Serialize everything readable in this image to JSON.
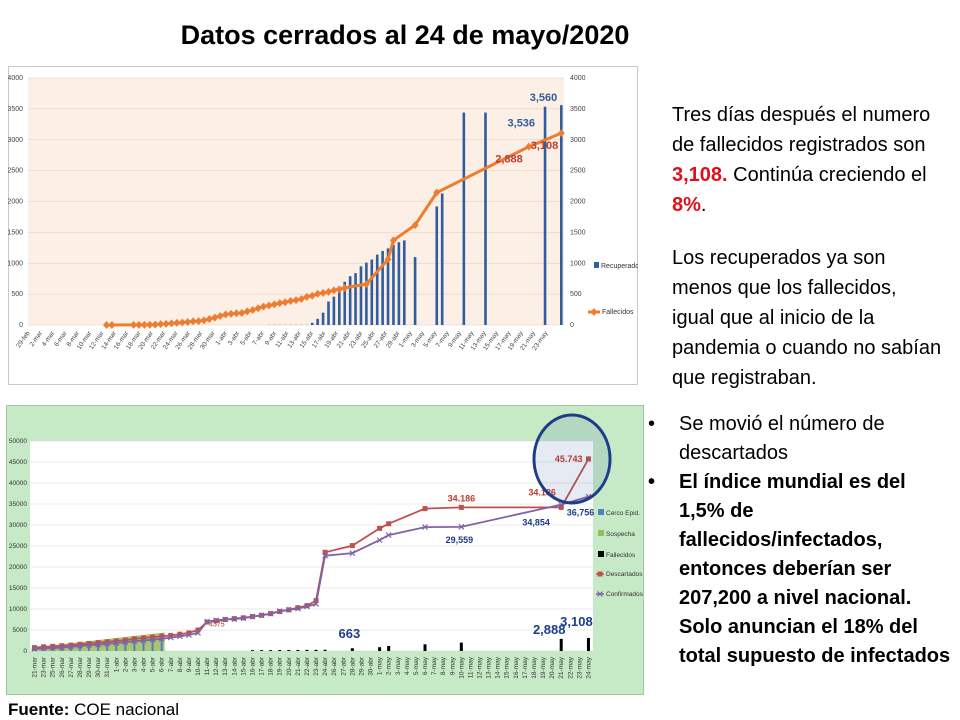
{
  "title": "Datos cerrados al 24 de mayo/2020",
  "para1": {
    "text_before": "Tres días después el numero de fallecidos registrados son ",
    "value": "3,108.",
    "text_middle": " Continúa creciendo el ",
    "pct": "8%",
    "text_end": "."
  },
  "para2": "Los recuperados ya son menos que los fallecidos, igual que al inicio de la pandemia o cuando no sabían que registraban.",
  "bullets": [
    "Se movió  el número de descartados",
    "El índice mundial es del 1,5% de fallecidos/infectados, entonces deberían ser 207,200 a nivel nacional. Solo anuncian el 18% del total supuesto de infectados"
  ],
  "source": {
    "label": "Fuente:",
    "text": " COE nacional"
  },
  "colors": {
    "recuperados": "#2f5d9e",
    "fallecidos": "#ed7d31",
    "descartados": "#c0504d",
    "confirmados": "#8064a2",
    "sospecha": "#9bbb59",
    "highlight": "#1f3c88"
  },
  "chart_data": [
    {
      "type": "bar+line",
      "ylim": [
        0,
        4000
      ],
      "yticks": [
        "0",
        "500",
        "1000",
        "1500",
        "2000",
        "2500",
        "3000",
        "3500",
        "4000"
      ],
      "categories": [
        "29-feb",
        "2-mar",
        "4-mar",
        "6-mar",
        "8-mar",
        "10-mar",
        "12-mar",
        "14-mar",
        "16-mar",
        "18-mar",
        "20-mar",
        "22-mar",
        "24-mar",
        "26-mar",
        "28-mar",
        "30-mar",
        "1-abr",
        "3-abr",
        "5-abr",
        "7-abr",
        "9-abr",
        "11-abr",
        "13-abr",
        "15-abr",
        "17-abr",
        "19-abr",
        "21-abr",
        "23-abr",
        "25-abr",
        "27-abr",
        "29-abr",
        "1-may",
        "3-may",
        "5-may",
        "7-may",
        "9-may",
        "11-may",
        "13-may",
        "15-may",
        "17-may",
        "19-may",
        "21-may",
        "23-may"
      ],
      "legend": [
        "Recuperados",
        "Fallecidos"
      ],
      "legend_position": "right",
      "recuperados": [
        [
          44,
          3
        ],
        [
          45,
          3
        ],
        [
          46,
          3
        ],
        [
          47,
          3
        ],
        [
          48,
          3
        ],
        [
          49,
          3
        ],
        [
          50,
          3
        ],
        [
          51,
          3
        ],
        [
          52,
          35
        ],
        [
          53,
          100
        ],
        [
          54,
          200
        ],
        [
          55,
          380
        ],
        [
          56,
          460
        ],
        [
          57,
          560
        ],
        [
          58,
          700
        ],
        [
          59,
          790
        ],
        [
          60,
          840
        ],
        [
          61,
          950
        ],
        [
          62,
          1010
        ],
        [
          63,
          1060
        ],
        [
          64,
          1140
        ],
        [
          65,
          1200
        ],
        [
          66,
          1240
        ],
        [
          67,
          1300
        ],
        [
          68,
          1340
        ],
        [
          69,
          1370
        ],
        [
          71,
          1100
        ],
        [
          75,
          1920
        ],
        [
          76,
          2130
        ],
        [
          80,
          3440
        ],
        [
          84,
          3440
        ],
        [
          95,
          3536
        ],
        [
          98,
          3560
        ]
      ],
      "fallecidos": [
        [
          14,
          0
        ],
        [
          15,
          0
        ],
        [
          19,
          2
        ],
        [
          20,
          2
        ],
        [
          21,
          2
        ],
        [
          22,
          5
        ],
        [
          23,
          7
        ],
        [
          24,
          14
        ],
        [
          25,
          18
        ],
        [
          26,
          27
        ],
        [
          27,
          34
        ],
        [
          28,
          41
        ],
        [
          29,
          48
        ],
        [
          30,
          58
        ],
        [
          31,
          62
        ],
        [
          32,
          75
        ],
        [
          33,
          98
        ],
        [
          34,
          120
        ],
        [
          35,
          145
        ],
        [
          36,
          172
        ],
        [
          37,
          180
        ],
        [
          38,
          191
        ],
        [
          39,
          194
        ],
        [
          40,
          220
        ],
        [
          41,
          242
        ],
        [
          42,
          272
        ],
        [
          43,
          297
        ],
        [
          44,
          315
        ],
        [
          45,
          333
        ],
        [
          46,
          355
        ],
        [
          47,
          369
        ],
        [
          48,
          388
        ],
        [
          49,
          403
        ],
        [
          50,
          421
        ],
        [
          51,
          456
        ],
        [
          52,
          474
        ],
        [
          53,
          507
        ],
        [
          54,
          520
        ],
        [
          55,
          537
        ],
        [
          56,
          560
        ],
        [
          57,
          576
        ],
        [
          58,
          601
        ],
        [
          62,
          662
        ],
        [
          66,
          1063
        ],
        [
          67,
          1371
        ],
        [
          71,
          1618
        ],
        [
          75,
          2145
        ],
        [
          92,
          2888
        ],
        [
          98,
          3108
        ]
      ],
      "labels": {
        "recuperados_a": "3,536",
        "recuperados_b": "3,560",
        "fallecidos_a": "2,888",
        "fallecidos_b": "3,108"
      }
    },
    {
      "type": "bar+line",
      "ylim": [
        0,
        50000
      ],
      "yticks": [
        "0",
        "5000",
        "10000",
        "15000",
        "20000",
        "25000",
        "30000",
        "35000",
        "40000",
        "45000",
        "50000"
      ],
      "categories": [
        "21-mar",
        "23-mar",
        "25-mar",
        "26-mar",
        "27-mar",
        "28-mar",
        "29-mar",
        "30-mar",
        "31-mar",
        "1-abr",
        "2-abr",
        "3-abr",
        "4-abr",
        "5-abr",
        "6-abr",
        "7-abr",
        "8-abr",
        "9-abr",
        "10-abr",
        "11-abr",
        "12-abr",
        "13-abr",
        "14-abr",
        "15-abr",
        "16-abr",
        "17-abr",
        "18-abr",
        "19-abr",
        "20-abr",
        "21-abr",
        "22-abr",
        "23-abr",
        "24-abr",
        "26-abr",
        "27-abr",
        "28-abr",
        "29-abr",
        "30-abr",
        "1-may",
        "2-may",
        "3-may",
        "4-may",
        "5-may",
        "6-may",
        "7-may",
        "8-may",
        "9-may",
        "10-may",
        "11-may",
        "12-may",
        "13-may",
        "14-may",
        "15-may",
        "16-may",
        "17-may",
        "18-may",
        "19-may",
        "20-may",
        "21-may",
        "22-may",
        "23-may",
        "24-may"
      ],
      "legend": [
        "Cerco Epid.",
        "Sospecha",
        "Fallecidos",
        "Descartados",
        "Confirmados"
      ],
      "legend_position": "right",
      "descartados": [
        [
          0,
          800
        ],
        [
          1,
          1000
        ],
        [
          2,
          1100
        ],
        [
          3,
          1250
        ],
        [
          4,
          1400
        ],
        [
          5,
          1600
        ],
        [
          6,
          1800
        ],
        [
          7,
          2000
        ],
        [
          8,
          2200
        ],
        [
          9,
          2400
        ],
        [
          10,
          2600
        ],
        [
          11,
          2900
        ],
        [
          12,
          3100
        ],
        [
          13,
          3300
        ],
        [
          14,
          3500
        ],
        [
          15,
          3700
        ],
        [
          16,
          4000
        ],
        [
          17,
          4300
        ],
        [
          18,
          5000
        ],
        [
          19,
          6900
        ],
        [
          20,
          7200
        ],
        [
          21,
          7500
        ],
        [
          22,
          7700
        ],
        [
          23,
          7900
        ],
        [
          24,
          8200
        ],
        [
          25,
          8500
        ],
        [
          26,
          8900
        ],
        [
          27,
          9400
        ],
        [
          28,
          9800
        ],
        [
          29,
          10300
        ],
        [
          30,
          10800
        ],
        [
          31,
          12000
        ],
        [
          32,
          23500
        ],
        [
          35,
          25100
        ],
        [
          38,
          29200
        ],
        [
          39,
          30300
        ],
        [
          43,
          33900
        ],
        [
          47,
          34186
        ],
        [
          58,
          34186
        ],
        [
          61,
          45743
        ]
      ],
      "confirmados": [
        [
          0,
          500
        ],
        [
          1,
          600
        ],
        [
          2,
          700
        ],
        [
          3,
          800
        ],
        [
          4,
          1000
        ],
        [
          5,
          1200
        ],
        [
          6,
          1400
        ],
        [
          7,
          1500
        ],
        [
          8,
          1700
        ],
        [
          9,
          1900
        ],
        [
          10,
          2100
        ],
        [
          11,
          2300
        ],
        [
          12,
          2500
        ],
        [
          13,
          2700
        ],
        [
          14,
          2900
        ],
        [
          15,
          3200
        ],
        [
          16,
          3500
        ],
        [
          17,
          3800
        ],
        [
          18,
          4300
        ],
        [
          19,
          7000
        ],
        [
          20,
          7300
        ],
        [
          21,
          7500
        ],
        [
          22,
          7600
        ],
        [
          23,
          7800
        ],
        [
          24,
          8200
        ],
        [
          25,
          8500
        ],
        [
          26,
          8900
        ],
        [
          27,
          9500
        ],
        [
          28,
          9800
        ],
        [
          29,
          10100
        ],
        [
          30,
          10600
        ],
        [
          31,
          11200
        ],
        [
          32,
          22700
        ],
        [
          35,
          23300
        ],
        [
          38,
          26400
        ],
        [
          39,
          27600
        ],
        [
          43,
          29500
        ],
        [
          47,
          29559
        ],
        [
          58,
          34854
        ],
        [
          61,
          36756
        ]
      ],
      "sospecha_extent": [
        0,
        14
      ],
      "fallecidos_bars": [
        [
          24,
          200
        ],
        [
          25,
          200
        ],
        [
          26,
          210
        ],
        [
          27,
          230
        ],
        [
          28,
          240
        ],
        [
          29,
          250
        ],
        [
          30,
          270
        ],
        [
          31,
          280
        ],
        [
          32,
          300
        ],
        [
          35,
          663
        ],
        [
          38,
          900
        ],
        [
          39,
          1200
        ],
        [
          43,
          1600
        ],
        [
          47,
          2000
        ],
        [
          58,
          2888
        ],
        [
          61,
          3108
        ]
      ],
      "labels": {
        "desc_peak": "34.186",
        "desc_peak2": "34.186",
        "desc_last": "45.743",
        "conf_mid": "29,559",
        "conf_a": "34,854",
        "conf_last": "36,756",
        "fall_mid": "663",
        "fall_a": "2,888",
        "fall_last": "3,108",
        "small_label": "4375"
      }
    }
  ]
}
